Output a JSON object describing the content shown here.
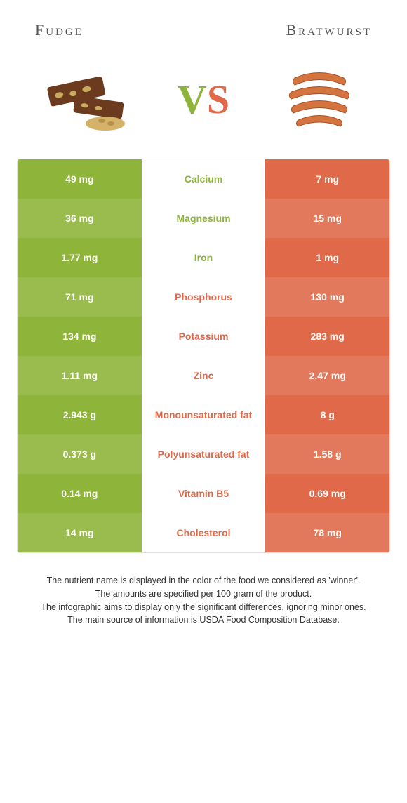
{
  "left_food": {
    "name": "Fudge"
  },
  "right_food": {
    "name": "Bratwurst"
  },
  "colors": {
    "left": "#8fb43a",
    "left_alt": "#9abc4f",
    "right": "#e0694a",
    "right_alt": "#e2785c",
    "mid_text_left": "#8fb43a",
    "mid_text_right": "#e0694a"
  },
  "rows": [
    {
      "left": "49 mg",
      "name": "Calcium",
      "right": "7 mg",
      "winner": "left"
    },
    {
      "left": "36 mg",
      "name": "Magnesium",
      "right": "15 mg",
      "winner": "left"
    },
    {
      "left": "1.77 mg",
      "name": "Iron",
      "right": "1 mg",
      "winner": "left"
    },
    {
      "left": "71 mg",
      "name": "Phosphorus",
      "right": "130 mg",
      "winner": "right"
    },
    {
      "left": "134 mg",
      "name": "Potassium",
      "right": "283 mg",
      "winner": "right"
    },
    {
      "left": "1.11 mg",
      "name": "Zinc",
      "right": "2.47 mg",
      "winner": "right"
    },
    {
      "left": "2.943 g",
      "name": "Monounsaturated fat",
      "right": "8 g",
      "winner": "right"
    },
    {
      "left": "0.373 g",
      "name": "Polyunsaturated fat",
      "right": "1.58 g",
      "winner": "right"
    },
    {
      "left": "0.14 mg",
      "name": "Vitamin B5",
      "right": "0.69 mg",
      "winner": "right"
    },
    {
      "left": "14 mg",
      "name": "Cholesterol",
      "right": "78 mg",
      "winner": "right"
    }
  ],
  "footnotes": [
    "The nutrient name is displayed in the color of the food we considered as 'winner'.",
    "The amounts are specified per 100 gram of the product.",
    "The infographic aims to display only the significant differences, ignoring minor ones.",
    "The main source of information is USDA Food Composition Database."
  ]
}
